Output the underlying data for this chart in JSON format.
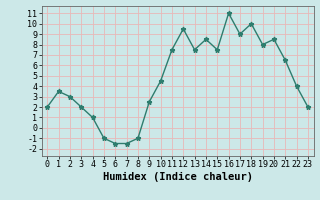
{
  "x": [
    0,
    1,
    2,
    3,
    4,
    5,
    6,
    7,
    8,
    9,
    10,
    11,
    12,
    13,
    14,
    15,
    16,
    17,
    18,
    19,
    20,
    21,
    22,
    23
  ],
  "y": [
    2,
    3.5,
    3,
    2,
    1,
    -1,
    -1.5,
    -1.5,
    -1,
    2.5,
    4.5,
    7.5,
    9.5,
    7.5,
    8.5,
    7.5,
    11,
    9,
    10,
    8,
    8.5,
    6.5,
    4,
    2
  ],
  "line_color": "#2e7d6e",
  "marker": "*",
  "marker_size": 3.5,
  "bg_color": "#cce8e8",
  "grid_color": "#e8b8b8",
  "xlabel": "Humidex (Indice chaleur)",
  "xlabel_fontsize": 7.5,
  "xlim": [
    -0.5,
    23.5
  ],
  "ylim": [
    -2.7,
    11.7
  ],
  "yticks": [
    -2,
    -1,
    0,
    1,
    2,
    3,
    4,
    5,
    6,
    7,
    8,
    9,
    10,
    11
  ],
  "xticks": [
    0,
    1,
    2,
    3,
    4,
    5,
    6,
    7,
    8,
    9,
    10,
    11,
    12,
    13,
    14,
    15,
    16,
    17,
    18,
    19,
    20,
    21,
    22,
    23
  ],
  "tick_fontsize": 6,
  "line_width": 1.0
}
